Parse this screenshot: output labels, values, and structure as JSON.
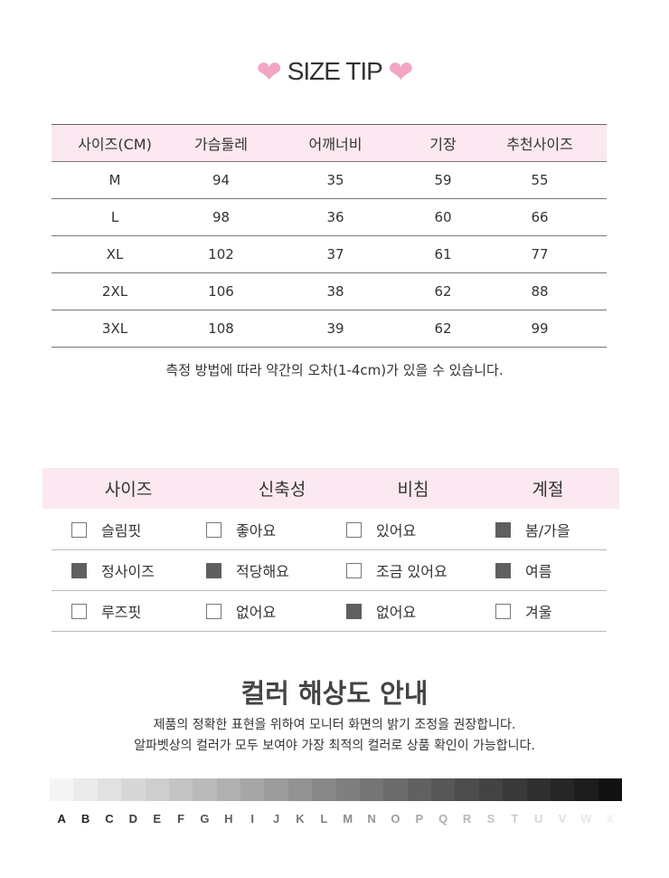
{
  "size_tip": {
    "title": "SIZE TIP",
    "heart_color": "#f3a5c4",
    "headers": [
      "사이즈(CM)",
      "가슴둘레",
      "어깨너비",
      "기장",
      "추천사이즈"
    ],
    "rows": [
      [
        "M",
        "94",
        "35",
        "59",
        "55"
      ],
      [
        "L",
        "98",
        "36",
        "60",
        "66"
      ],
      [
        "XL",
        "102",
        "37",
        "61",
        "77"
      ],
      [
        "2XL",
        "106",
        "38",
        "62",
        "88"
      ],
      [
        "3XL",
        "108",
        "39",
        "62",
        "99"
      ]
    ],
    "note": "측정 방법에 따라 약간의 오차(1-4cm)가 있을 수 있습니다."
  },
  "fit": {
    "headers": [
      "사이즈",
      "신축성",
      "비침",
      "계절"
    ],
    "rows": [
      [
        {
          "label": "슬림핏",
          "checked": false
        },
        {
          "label": "좋아요",
          "checked": false
        },
        {
          "label": "있어요",
          "checked": false
        },
        {
          "label": "봄/가을",
          "checked": true
        }
      ],
      [
        {
          "label": "정사이즈",
          "checked": true
        },
        {
          "label": "적당해요",
          "checked": true
        },
        {
          "label": "조금 있어요",
          "checked": false
        },
        {
          "label": "여름",
          "checked": true
        }
      ],
      [
        {
          "label": "루즈핏",
          "checked": false
        },
        {
          "label": "없어요",
          "checked": false
        },
        {
          "label": "없어요",
          "checked": true
        },
        {
          "label": "겨울",
          "checked": false
        }
      ]
    ]
  },
  "color_guide": {
    "title": "컬러 해상도 안내",
    "lines": [
      "제품의 정확한 표현을 위하여 모니터 화면의 밝기 조정을 권장합니다.",
      "알파벳상의 컬러가 모두 보여야 가장 최적의 컬러로 상품 확인이 가능합니다."
    ],
    "letters": [
      "A",
      "B",
      "C",
      "D",
      "E",
      "F",
      "G",
      "H",
      "I",
      "J",
      "K",
      "L",
      "M",
      "N",
      "O",
      "P",
      "Q",
      "R",
      "S",
      "T",
      "U",
      "V",
      "W",
      "X"
    ]
  }
}
